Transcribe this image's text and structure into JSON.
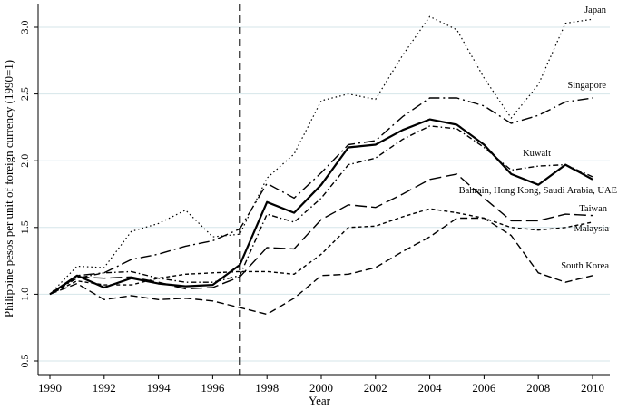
{
  "chart_data": {
    "type": "line",
    "xlabel": "Year",
    "ylabel": "Philippine pesos per unit of foreign currency (1990=1)",
    "xlim": [
      1990,
      2010
    ],
    "ylim": [
      0.5,
      3.2
    ],
    "xticks": [
      "1990",
      "1992",
      "1994",
      "1996",
      "1998",
      "2000",
      "2002",
      "2004",
      "2006",
      "2008",
      "2010"
    ],
    "yticks": [
      "0.5",
      "1.0",
      "1.5",
      "2.0",
      "2.5",
      "3.0"
    ],
    "grid": "horizontal",
    "vertical_line_x": 1997,
    "x": [
      1990,
      1991,
      1992,
      1993,
      1994,
      1995,
      1996,
      1997,
      1998,
      1999,
      2000,
      2001,
      2002,
      2003,
      2004,
      2005,
      2006,
      2007,
      2008,
      2009,
      2010
    ],
    "series": [
      {
        "name": "Japan",
        "dash": "dot",
        "values": [
          1.0,
          1.21,
          1.2,
          1.47,
          1.53,
          1.63,
          1.43,
          1.45,
          1.87,
          2.05,
          2.45,
          2.5,
          2.46,
          2.79,
          3.08,
          2.98,
          2.62,
          2.32,
          2.57,
          3.03,
          3.06
        ]
      },
      {
        "name": "Singapore",
        "dash": "dashdot",
        "values": [
          1.0,
          1.14,
          1.16,
          1.26,
          1.3,
          1.36,
          1.4,
          1.49,
          1.83,
          1.72,
          1.91,
          2.12,
          2.15,
          2.33,
          2.47,
          2.47,
          2.41,
          2.28,
          2.34,
          2.44,
          2.47
        ]
      },
      {
        "name": "Kuwait",
        "dash": "dashdot-small",
        "values": [
          1.0,
          1.12,
          1.16,
          1.17,
          1.12,
          1.09,
          1.09,
          1.14,
          1.6,
          1.54,
          1.72,
          1.97,
          2.02,
          2.16,
          2.26,
          2.24,
          2.1,
          1.93,
          1.96,
          1.97,
          1.88
        ]
      },
      {
        "name": "Bahrain, Hong Kong, Saudi Arabia, UAE",
        "dash": "solid",
        "values": [
          1.0,
          1.14,
          1.05,
          1.12,
          1.08,
          1.06,
          1.07,
          1.22,
          1.69,
          1.61,
          1.82,
          2.1,
          2.12,
          2.23,
          2.31,
          2.27,
          2.12,
          1.9,
          1.82,
          1.97,
          1.86
        ]
      },
      {
        "name": "Taiwan",
        "dash": "longdash",
        "values": [
          1.0,
          1.13,
          1.12,
          1.13,
          1.09,
          1.04,
          1.05,
          1.13,
          1.35,
          1.34,
          1.56,
          1.67,
          1.65,
          1.75,
          1.86,
          1.9,
          1.72,
          1.55,
          1.55,
          1.6,
          1.59
        ]
      },
      {
        "name": "Malaysia",
        "dash": "shortdash",
        "values": [
          1.0,
          1.1,
          1.07,
          1.07,
          1.12,
          1.15,
          1.16,
          1.17,
          1.17,
          1.15,
          1.3,
          1.5,
          1.51,
          1.58,
          1.64,
          1.61,
          1.57,
          1.5,
          1.48,
          1.5,
          1.54
        ]
      },
      {
        "name": "South Korea",
        "dash": "dash",
        "values": [
          1.0,
          1.08,
          0.96,
          0.99,
          0.96,
          0.97,
          0.95,
          0.9,
          0.85,
          0.97,
          1.14,
          1.15,
          1.2,
          1.32,
          1.43,
          1.57,
          1.57,
          1.44,
          1.16,
          1.09,
          1.14
        ]
      }
    ]
  }
}
